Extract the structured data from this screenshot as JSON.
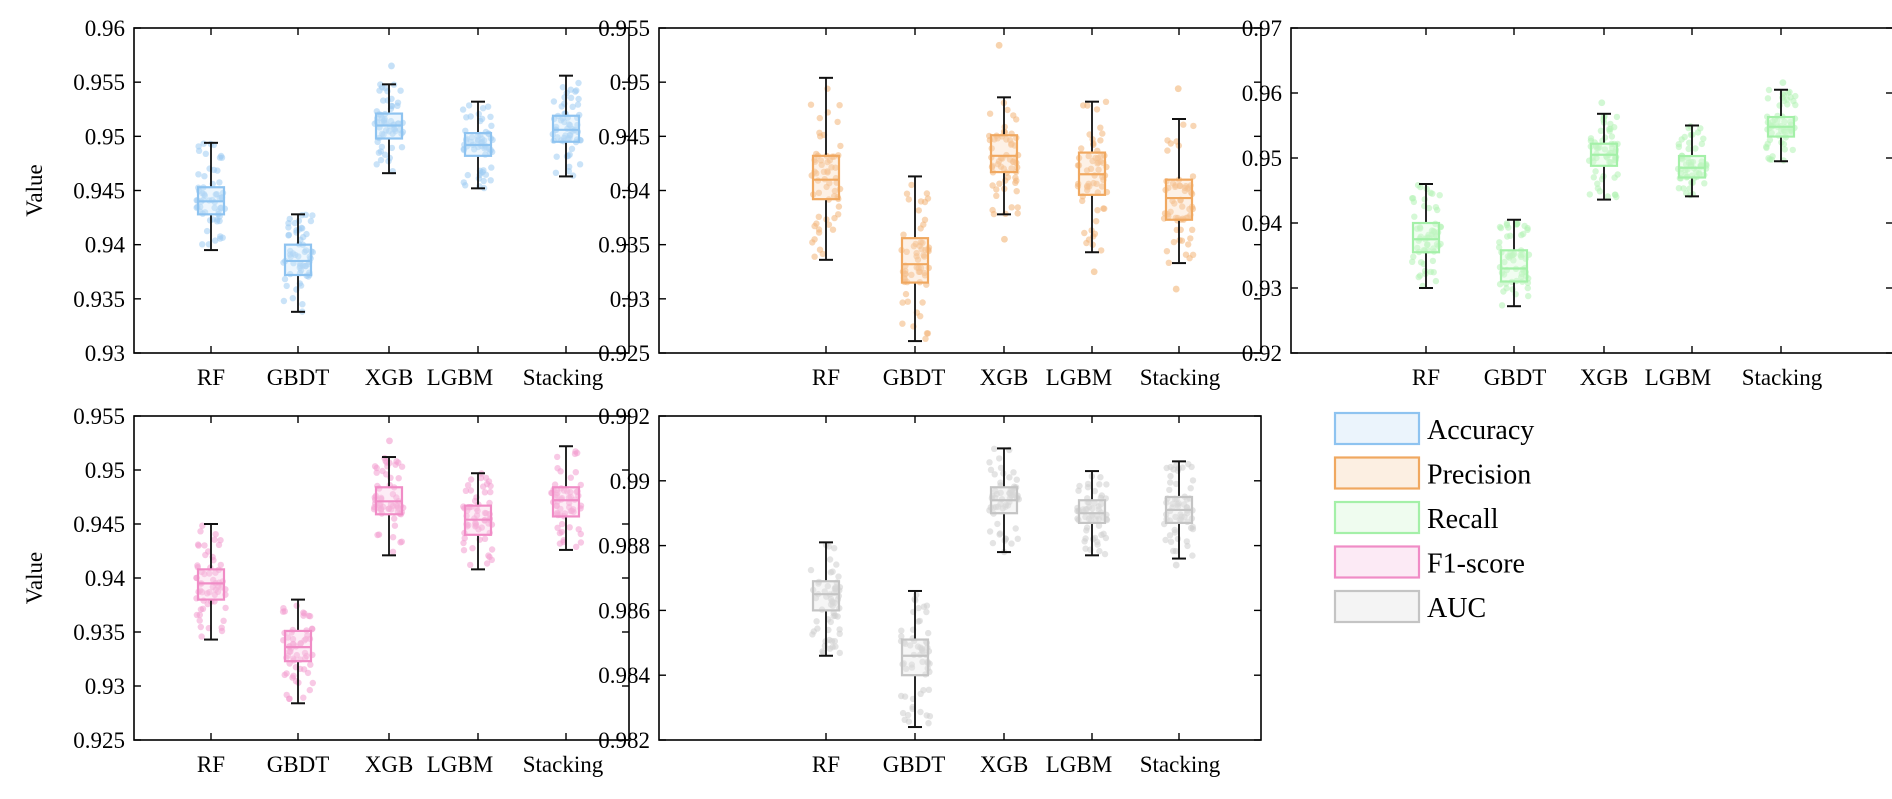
{
  "figure": {
    "categories": [
      "RF",
      "GBDT",
      "XGB",
      "LGBM",
      "Stacking"
    ],
    "ylabel": "Value"
  },
  "legend": [
    {
      "label": "Accuracy",
      "color": "#8EC3F0"
    },
    {
      "label": "Precision",
      "color": "#F0A860"
    },
    {
      "label": "Recall",
      "color": "#A4F0A8"
    },
    {
      "label": "F1-score",
      "color": "#F08CC6"
    },
    {
      "label": "AUC",
      "color": "#C4C4C4"
    }
  ],
  "chart_data": [
    {
      "type": "box",
      "metric": "Accuracy",
      "color": "#8EC3F0",
      "ylabel": "Value",
      "ylim": [
        0.93,
        0.96
      ],
      "yticks": [
        0.93,
        0.935,
        0.94,
        0.945,
        0.95,
        0.955,
        0.96
      ],
      "yticklabels": [
        "0.93",
        "0.935",
        "0.94",
        "0.945",
        "0.95",
        "0.955",
        "0.96"
      ],
      "categories": [
        "RF",
        "GBDT",
        "XGB",
        "LGBM",
        "Stacking"
      ],
      "boxes": [
        {
          "category": "RF",
          "min": 0.9395,
          "q1": 0.9428,
          "median": 0.944,
          "q3": 0.9453,
          "max": 0.9494
        },
        {
          "category": "GBDT",
          "min": 0.9338,
          "q1": 0.9372,
          "median": 0.9385,
          "q3": 0.94,
          "max": 0.9428
        },
        {
          "category": "XGB",
          "min": 0.9466,
          "q1": 0.9498,
          "median": 0.951,
          "q3": 0.9521,
          "max": 0.9548
        },
        {
          "category": "LGBM",
          "min": 0.9452,
          "q1": 0.9482,
          "median": 0.9492,
          "q3": 0.9503,
          "max": 0.9532
        },
        {
          "category": "Stacking",
          "min": 0.9463,
          "q1": 0.9495,
          "median": 0.9506,
          "q3": 0.9519,
          "max": 0.9556
        }
      ],
      "outliers": [
        {
          "category": "XGB",
          "value": 0.9565
        }
      ]
    },
    {
      "type": "box",
      "metric": "Precision",
      "color": "#F0A860",
      "ylabel": "",
      "ylim": [
        0.925,
        0.955
      ],
      "yticks": [
        0.925,
        0.93,
        0.935,
        0.94,
        0.945,
        0.95,
        0.955
      ],
      "yticklabels": [
        "0.925",
        "0.93",
        "0.935",
        "0.94",
        "0.945",
        "0.95",
        "0.955"
      ],
      "categories": [
        "RF",
        "GBDT",
        "XGB",
        "LGBM",
        "Stacking"
      ],
      "boxes": [
        {
          "category": "RF",
          "min": 0.9336,
          "q1": 0.9392,
          "median": 0.941,
          "q3": 0.9432,
          "max": 0.9504
        },
        {
          "category": "GBDT",
          "min": 0.9261,
          "q1": 0.9315,
          "median": 0.9332,
          "q3": 0.9356,
          "max": 0.9413
        },
        {
          "category": "XGB",
          "min": 0.9378,
          "q1": 0.9417,
          "median": 0.9432,
          "q3": 0.9451,
          "max": 0.9486
        },
        {
          "category": "LGBM",
          "min": 0.9343,
          "q1": 0.9396,
          "median": 0.9415,
          "q3": 0.9435,
          "max": 0.9482
        },
        {
          "category": "Stacking",
          "min": 0.9333,
          "q1": 0.9373,
          "median": 0.9393,
          "q3": 0.941,
          "max": 0.9466
        }
      ],
      "outliers": [
        {
          "category": "XGB",
          "value": 0.9534
        },
        {
          "category": "XGB",
          "value": 0.9355
        },
        {
          "category": "LGBM",
          "value": 0.9325
        },
        {
          "category": "Stacking",
          "value": 0.9494
        },
        {
          "category": "Stacking",
          "value": 0.9309
        }
      ]
    },
    {
      "type": "box",
      "metric": "Recall",
      "color": "#A4F0A8",
      "ylabel": "",
      "ylim": [
        0.92,
        0.97
      ],
      "yticks": [
        0.92,
        0.93,
        0.94,
        0.95,
        0.96,
        0.97
      ],
      "yticklabels": [
        "0.92",
        "0.93",
        "0.94",
        "0.95",
        "0.96",
        "0.97"
      ],
      "categories": [
        "RF",
        "GBDT",
        "XGB",
        "LGBM",
        "Stacking"
      ],
      "boxes": [
        {
          "category": "RF",
          "min": 0.93,
          "q1": 0.9355,
          "median": 0.9375,
          "q3": 0.94,
          "max": 0.946
        },
        {
          "category": "GBDT",
          "min": 0.9272,
          "q1": 0.931,
          "median": 0.933,
          "q3": 0.9358,
          "max": 0.9405
        },
        {
          "category": "XGB",
          "min": 0.9436,
          "q1": 0.9488,
          "median": 0.9505,
          "q3": 0.9522,
          "max": 0.9568
        },
        {
          "category": "LGBM",
          "min": 0.9441,
          "q1": 0.947,
          "median": 0.9485,
          "q3": 0.9503,
          "max": 0.955
        },
        {
          "category": "Stacking",
          "min": 0.9495,
          "q1": 0.9533,
          "median": 0.9548,
          "q3": 0.9563,
          "max": 0.9605
        }
      ],
      "outliers": [
        {
          "category": "Stacking",
          "value": 0.9616
        },
        {
          "category": "XGB",
          "value": 0.9585
        }
      ]
    },
    {
      "type": "box",
      "metric": "F1-score",
      "color": "#F08CC6",
      "ylabel": "Value",
      "ylim": [
        0.925,
        0.955
      ],
      "yticks": [
        0.925,
        0.93,
        0.935,
        0.94,
        0.945,
        0.95,
        0.955
      ],
      "yticklabels": [
        "0.925",
        "0.93",
        "0.935",
        "0.94",
        "0.945",
        "0.95",
        "0.955"
      ],
      "categories": [
        "RF",
        "GBDT",
        "XGB",
        "LGBM",
        "Stacking"
      ],
      "boxes": [
        {
          "category": "RF",
          "min": 0.9343,
          "q1": 0.938,
          "median": 0.9395,
          "q3": 0.9408,
          "max": 0.945
        },
        {
          "category": "GBDT",
          "min": 0.9284,
          "q1": 0.9323,
          "median": 0.9336,
          "q3": 0.9351,
          "max": 0.938
        },
        {
          "category": "XGB",
          "min": 0.9421,
          "q1": 0.9459,
          "median": 0.9471,
          "q3": 0.9484,
          "max": 0.9512
        },
        {
          "category": "LGBM",
          "min": 0.9408,
          "q1": 0.944,
          "median": 0.9454,
          "q3": 0.9467,
          "max": 0.9497
        },
        {
          "category": "Stacking",
          "min": 0.9426,
          "q1": 0.9457,
          "median": 0.9472,
          "q3": 0.9484,
          "max": 0.9522
        }
      ],
      "outliers": [
        {
          "category": "XGB",
          "value": 0.9527
        }
      ]
    },
    {
      "type": "box",
      "metric": "AUC",
      "color": "#C4C4C4",
      "ylabel": "",
      "ylim": [
        0.982,
        0.992
      ],
      "yticks": [
        0.982,
        0.984,
        0.986,
        0.988,
        0.99,
        0.992
      ],
      "yticklabels": [
        "0.982",
        "0.984",
        "0.986",
        "0.988",
        "0.99",
        "0.992"
      ],
      "categories": [
        "RF",
        "GBDT",
        "XGB",
        "LGBM",
        "Stacking"
      ],
      "boxes": [
        {
          "category": "RF",
          "min": 0.9846,
          "q1": 0.986,
          "median": 0.9865,
          "q3": 0.9869,
          "max": 0.9881
        },
        {
          "category": "GBDT",
          "min": 0.9824,
          "q1": 0.984,
          "median": 0.9846,
          "q3": 0.9851,
          "max": 0.9866
        },
        {
          "category": "XGB",
          "min": 0.9878,
          "q1": 0.989,
          "median": 0.9894,
          "q3": 0.9898,
          "max": 0.991
        },
        {
          "category": "LGBM",
          "min": 0.9877,
          "q1": 0.9887,
          "median": 0.989,
          "q3": 0.9894,
          "max": 0.9903
        },
        {
          "category": "Stacking",
          "min": 0.9876,
          "q1": 0.9887,
          "median": 0.9891,
          "q3": 0.9895,
          "max": 0.9906
        }
      ],
      "outliers": [
        {
          "category": "Stacking",
          "value": 0.9874
        }
      ]
    }
  ]
}
